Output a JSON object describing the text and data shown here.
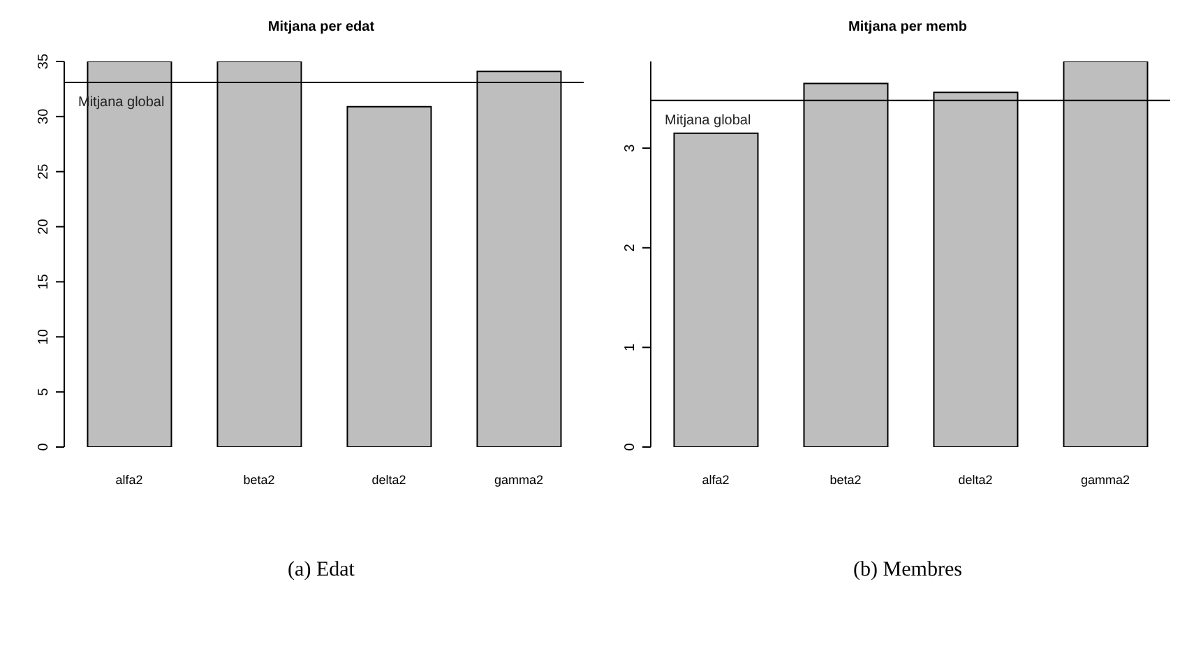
{
  "chart_data": [
    {
      "type": "bar",
      "title": "Mitjana per edat",
      "categories": [
        "alfa2",
        "beta2",
        "delta2",
        "gamma2"
      ],
      "values": [
        35,
        35,
        30.9,
        34.1
      ],
      "color": "#bebebe",
      "ylim": [
        0,
        35
      ],
      "yticks": [
        0,
        5,
        10,
        15,
        20,
        25,
        30,
        35
      ],
      "grid": false,
      "legend": false,
      "ref_lines": [
        {
          "axis": "y",
          "value": 33.1,
          "label": "Mitjana global",
          "color": "#000000"
        }
      ],
      "annotations": [
        "(a) Edat"
      ]
    },
    {
      "type": "bar",
      "title": "Mitjana per memb",
      "categories": [
        "alfa2",
        "beta2",
        "delta2",
        "gamma2"
      ],
      "values": [
        3.15,
        3.65,
        3.56,
        3.87
      ],
      "color": "#bebebe",
      "ylim": [
        0,
        3.87
      ],
      "yticks": [
        0,
        1,
        2,
        3
      ],
      "grid": false,
      "legend": false,
      "ref_lines": [
        {
          "axis": "y",
          "value": 3.48,
          "label": "Mitjana global",
          "color": "#000000"
        }
      ],
      "annotations": [
        "(b) Membres"
      ]
    }
  ]
}
